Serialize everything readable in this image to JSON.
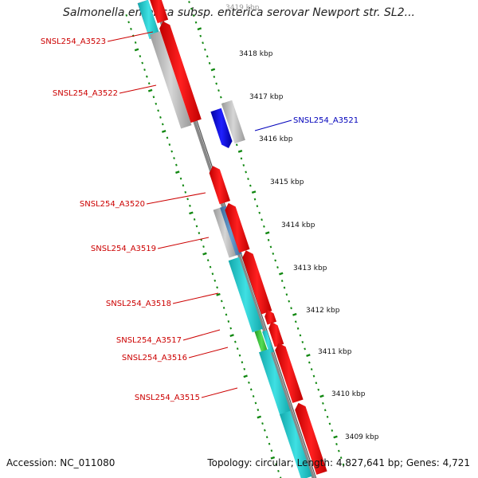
{
  "title": "Salmonella enterica subsp. enterica serovar Newport str. SL2...",
  "accession": "Accession: NC_011080",
  "summary": "Topology: circular; Length: 4,827,641 bp; Genes: 4,721",
  "colors": {
    "forward_cds": "#ff0000",
    "reverse_cds": "#0000dd",
    "gray_feature": "#b8b8b8",
    "cyan_feature": "#17c9cc",
    "green_feature": "#33bb33",
    "steelblue_feature": "#4a7fb5",
    "pink_feature": "#ff2a8a",
    "tick": "#118811",
    "backbone": "#888888"
  },
  "kbp_ticks": [
    {
      "label": "3419 kbp",
      "value": 3419
    },
    {
      "label": "3418 kbp",
      "value": 3418
    },
    {
      "label": "3417 kbp",
      "value": 3417
    },
    {
      "label": "3416 kbp",
      "value": 3416
    },
    {
      "label": "3415 kbp",
      "value": 3415
    },
    {
      "label": "3414 kbp",
      "value": 3414
    },
    {
      "label": "3413 kbp",
      "value": 3413
    },
    {
      "label": "3412 kbp",
      "value": 3412
    },
    {
      "label": "3411 kbp",
      "value": 3411
    },
    {
      "label": "3410 kbp",
      "value": 3410
    },
    {
      "label": "3409 kbp",
      "value": 3409
    }
  ],
  "gene_labels": [
    {
      "name": "SNSL254_A3523",
      "color": "#cc0000"
    },
    {
      "name": "SNSL254_A3522",
      "color": "#cc0000"
    },
    {
      "name": "SNSL254_A3521",
      "color": "#0000bb"
    },
    {
      "name": "SNSL254_A3520",
      "color": "#cc0000"
    },
    {
      "name": "SNSL254_A3519",
      "color": "#cc0000"
    },
    {
      "name": "SNSL254_A3518",
      "color": "#cc0000"
    },
    {
      "name": "SNSL254_A3517",
      "color": "#cc0000"
    },
    {
      "name": "SNSL254_A3516",
      "color": "#cc0000"
    },
    {
      "name": "SNSL254_A3515",
      "color": "#cc0000"
    }
  ]
}
